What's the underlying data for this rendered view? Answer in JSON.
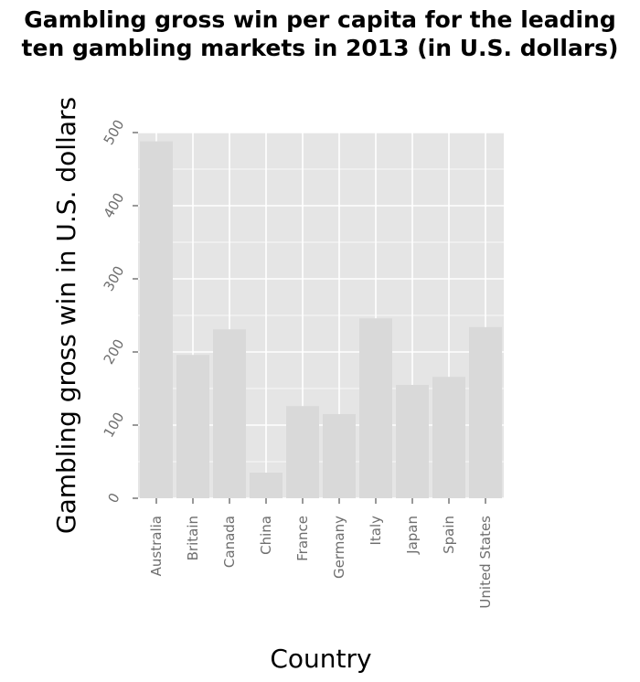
{
  "title_lines": [
    "Gambling gross win per capita for the leading",
    "ten gambling markets in 2013 (in U.S. dollars)"
  ],
  "chart_data": {
    "type": "bar",
    "title": "Gambling gross win per capita for the leading ten gambling markets in 2013 (in U.S. dollars)",
    "xlabel": "Country",
    "ylabel": "Gambling gross win in U.S. dollars",
    "categories": [
      "Australia",
      "Britain",
      "Canada",
      "China",
      "France",
      "Germany",
      "Italy",
      "Japan",
      "Spain",
      "United States"
    ],
    "values": [
      488,
      196,
      231,
      35,
      126,
      115,
      246,
      155,
      166,
      234
    ],
    "ylim": [
      0,
      500
    ],
    "yticks": [
      0,
      100,
      200,
      300,
      400,
      500
    ],
    "grid": true,
    "legend": "none",
    "colors": {
      "panel": "#e5e5e5",
      "bar": "#d9d9d9",
      "grid": "#ffffff",
      "tick_text": "#6e6e6e"
    }
  }
}
